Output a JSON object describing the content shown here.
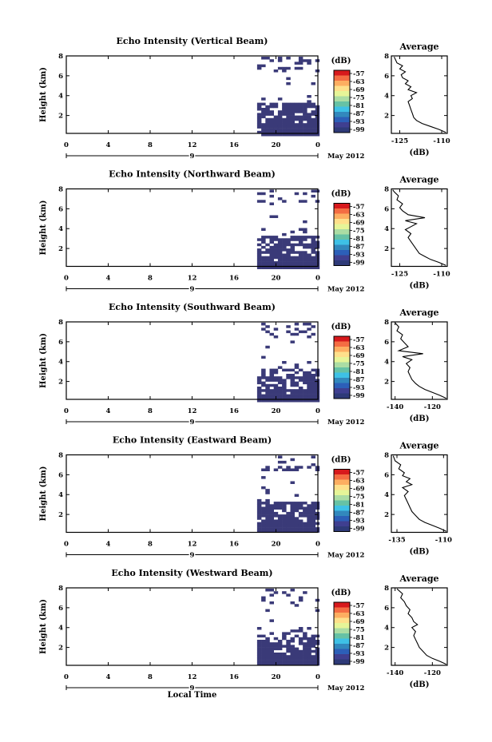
{
  "figure": {
    "bottom_xlabel": "Local Time",
    "date_label": "May 2012",
    "day_label": "9",
    "colorbar_unit": "(dB)",
    "colorbar_ticks": [
      "-57",
      "-63",
      "-69",
      "-75",
      "-81",
      "-87",
      "-93",
      "-99"
    ],
    "colorbar_colors": [
      "#d7191c",
      "#f46d43",
      "#fdae61",
      "#fee08b",
      "#e6f598",
      "#abdda4",
      "#66c2a5",
      "#3ec1e6",
      "#3288bd",
      "#2c5fb8",
      "#3f3f90",
      "#2e3a78"
    ],
    "mask_color": "#3a3a78"
  },
  "chart_data": [
    {
      "type": "heatmap",
      "title": "Echo Intensity (Vertical Beam)",
      "ylabel": "Height (km)",
      "xlabel": "",
      "x_ticks": [
        "0",
        "4",
        "8",
        "12",
        "16",
        "20",
        "0"
      ],
      "x_range": [
        0,
        24
      ],
      "y_ticks": [
        "2",
        "4",
        "6",
        "8"
      ],
      "y_range": [
        0.2,
        8
      ],
      "data_start_hour": 18.2,
      "profile": {
        "title": "Average",
        "xlabel": "(dB)",
        "x_ticks": [
          "-125",
          "-110"
        ],
        "xlim": [
          -128,
          -108
        ],
        "y_ticks": [
          "2",
          "4",
          "6",
          "8"
        ],
        "ylim": [
          0.2,
          8
        ],
        "points": [
          [
            -108.5,
            0.3
          ],
          [
            -111,
            0.6
          ],
          [
            -114,
            0.9
          ],
          [
            -117,
            1.2
          ],
          [
            -119,
            1.5
          ],
          [
            -120,
            1.8
          ],
          [
            -120.5,
            2.2
          ],
          [
            -121,
            2.6
          ],
          [
            -121.5,
            3.0
          ],
          [
            -122,
            3.4
          ],
          [
            -120.5,
            3.7
          ],
          [
            -121,
            4.0
          ],
          [
            -119,
            4.3
          ],
          [
            -122,
            4.6
          ],
          [
            -121,
            4.9
          ],
          [
            -123,
            5.2
          ],
          [
            -122,
            5.5
          ],
          [
            -124,
            5.8
          ],
          [
            -124.5,
            6.1
          ],
          [
            -123,
            6.4
          ],
          [
            -125,
            6.7
          ],
          [
            -124,
            7.0
          ],
          [
            -126,
            7.3
          ],
          [
            -126.5,
            7.6
          ],
          [
            -127,
            7.9
          ]
        ]
      }
    },
    {
      "type": "heatmap",
      "title": "Echo Intensity (Northward Beam)",
      "ylabel": "Height (km)",
      "xlabel": "",
      "x_ticks": [
        "0",
        "4",
        "8",
        "12",
        "16",
        "20",
        "0"
      ],
      "x_range": [
        0,
        24
      ],
      "y_ticks": [
        "2",
        "4",
        "6",
        "8"
      ],
      "y_range": [
        0.2,
        8
      ],
      "data_start_hour": 18.2,
      "profile": {
        "title": "Average",
        "xlabel": "(dB)",
        "x_ticks": [
          "-125",
          "-110"
        ],
        "xlim": [
          -128,
          -108
        ],
        "y_ticks": [
          "2",
          "4",
          "6",
          "8"
        ],
        "ylim": [
          0.2,
          8
        ],
        "points": [
          [
            -108.5,
            0.3
          ],
          [
            -111,
            0.6
          ],
          [
            -114,
            0.9
          ],
          [
            -116,
            1.2
          ],
          [
            -118,
            1.5
          ],
          [
            -119,
            1.9
          ],
          [
            -120,
            2.3
          ],
          [
            -121,
            2.7
          ],
          [
            -122,
            3.1
          ],
          [
            -121,
            3.5
          ],
          [
            -123,
            3.9
          ],
          [
            -121,
            4.2
          ],
          [
            -119,
            4.5
          ],
          [
            -123,
            4.8
          ],
          [
            -116,
            5.1
          ],
          [
            -122,
            5.4
          ],
          [
            -124,
            5.8
          ],
          [
            -125,
            6.1
          ],
          [
            -124,
            6.5
          ],
          [
            -126,
            6.9
          ],
          [
            -125.5,
            7.3
          ],
          [
            -127,
            7.7
          ],
          [
            -127.5,
            7.9
          ]
        ]
      }
    },
    {
      "type": "heatmap",
      "title": "Echo Intensity (Southward Beam)",
      "ylabel": "Height (km)",
      "xlabel": "",
      "x_ticks": [
        "0",
        "4",
        "8",
        "12",
        "16",
        "20",
        "0"
      ],
      "x_range": [
        0,
        24
      ],
      "y_ticks": [
        "2",
        "4",
        "6",
        "8"
      ],
      "y_range": [
        0.2,
        8
      ],
      "data_start_hour": 18.2,
      "profile": {
        "title": "Average",
        "xlabel": "(dB)",
        "x_ticks": [
          "-140",
          "-120"
        ],
        "xlim": [
          -142,
          -112
        ],
        "y_ticks": [
          "2",
          "4",
          "6",
          "8"
        ],
        "ylim": [
          0.2,
          8
        ],
        "points": [
          [
            -112.5,
            0.3
          ],
          [
            -116,
            0.6
          ],
          [
            -120,
            0.9
          ],
          [
            -124,
            1.2
          ],
          [
            -127,
            1.5
          ],
          [
            -129,
            1.8
          ],
          [
            -131,
            2.2
          ],
          [
            -132,
            2.6
          ],
          [
            -133,
            3.0
          ],
          [
            -132,
            3.4
          ],
          [
            -134,
            3.8
          ],
          [
            -131,
            4.2
          ],
          [
            -136,
            4.5
          ],
          [
            -125,
            4.8
          ],
          [
            -138,
            5.1
          ],
          [
            -133,
            5.5
          ],
          [
            -135,
            5.9
          ],
          [
            -137,
            6.3
          ],
          [
            -136,
            6.7
          ],
          [
            -139,
            7.1
          ],
          [
            -138,
            7.5
          ],
          [
            -140,
            7.9
          ]
        ]
      }
    },
    {
      "type": "heatmap",
      "title": "Echo Intensity (Eastward Beam)",
      "ylabel": "Height (km)",
      "xlabel": "",
      "x_ticks": [
        "0",
        "4",
        "8",
        "12",
        "16",
        "20",
        "0"
      ],
      "x_range": [
        0,
        24
      ],
      "y_ticks": [
        "2",
        "4",
        "6",
        "8"
      ],
      "y_range": [
        0.2,
        8
      ],
      "data_start_hour": 18.2,
      "profile": {
        "title": "Average",
        "xlabel": "(dB)",
        "x_ticks": [
          "-135",
          "-110"
        ],
        "xlim": [
          -138,
          -108
        ],
        "y_ticks": [
          "2",
          "4",
          "6",
          "8"
        ],
        "ylim": [
          0.2,
          8
        ],
        "points": [
          [
            -108.5,
            0.3
          ],
          [
            -112,
            0.6
          ],
          [
            -116,
            0.9
          ],
          [
            -120,
            1.2
          ],
          [
            -123,
            1.5
          ],
          [
            -125,
            1.9
          ],
          [
            -127,
            2.3
          ],
          [
            -128,
            2.7
          ],
          [
            -129,
            3.1
          ],
          [
            -130,
            3.5
          ],
          [
            -131,
            3.9
          ],
          [
            -129,
            4.3
          ],
          [
            -132,
            4.7
          ],
          [
            -127,
            5.0
          ],
          [
            -130,
            5.3
          ],
          [
            -128,
            5.6
          ],
          [
            -132,
            5.9
          ],
          [
            -131,
            6.2
          ],
          [
            -134,
            6.6
          ],
          [
            -133,
            7.0
          ],
          [
            -136,
            7.4
          ],
          [
            -137,
            7.9
          ]
        ]
      }
    },
    {
      "type": "heatmap",
      "title": "Echo Intensity (Westward Beam)",
      "ylabel": "Height (km)",
      "xlabel": "Local Time",
      "x_ticks": [
        "0",
        "4",
        "8",
        "12",
        "16",
        "20",
        "0"
      ],
      "x_range": [
        0,
        24
      ],
      "y_ticks": [
        "2",
        "4",
        "6",
        "8"
      ],
      "y_range": [
        0.2,
        8
      ],
      "data_start_hour": 18.2,
      "profile": {
        "title": "Average",
        "xlabel": "(dB)",
        "x_ticks": [
          "-140",
          "-120"
        ],
        "xlim": [
          -142,
          -112
        ],
        "y_ticks": [
          "2",
          "4",
          "6",
          "8"
        ],
        "ylim": [
          0.2,
          8
        ],
        "points": [
          [
            -112.5,
            0.3
          ],
          [
            -116,
            0.6
          ],
          [
            -120,
            0.9
          ],
          [
            -123,
            1.2
          ],
          [
            -125,
            1.6
          ],
          [
            -127,
            2.0
          ],
          [
            -128,
            2.4
          ],
          [
            -129,
            2.8
          ],
          [
            -130,
            3.2
          ],
          [
            -129,
            3.6
          ],
          [
            -131,
            4.0
          ],
          [
            -128,
            4.3
          ],
          [
            -130,
            4.6
          ],
          [
            -131,
            5.0
          ],
          [
            -133,
            5.4
          ],
          [
            -132,
            5.8
          ],
          [
            -134,
            6.2
          ],
          [
            -135,
            6.6
          ],
          [
            -137,
            7.0
          ],
          [
            -136,
            7.4
          ],
          [
            -139,
            7.9
          ]
        ]
      }
    }
  ]
}
